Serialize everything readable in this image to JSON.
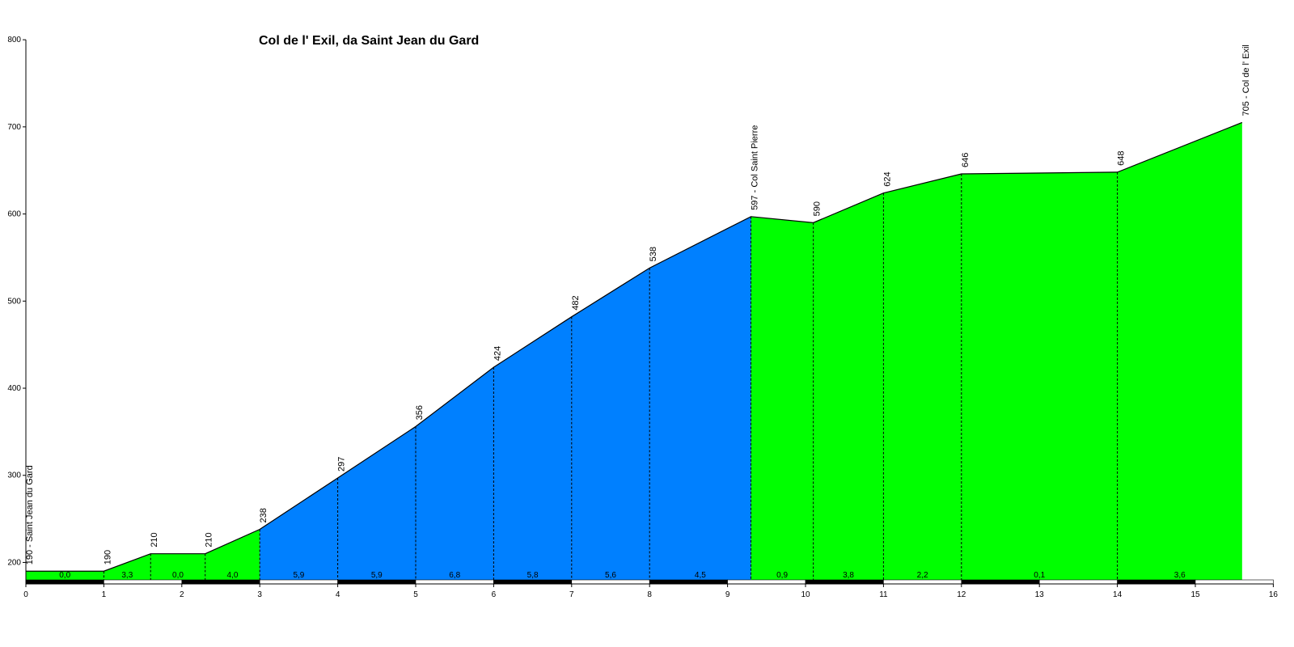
{
  "chart_data": {
    "type": "area",
    "title": "Col de l' Exil, da Saint Jean du Gard",
    "xlabel": "",
    "ylabel": "",
    "xlim": [
      0,
      16
    ],
    "ylim": [
      180,
      800
    ],
    "x_ticks": [
      0,
      1,
      2,
      3,
      4,
      5,
      6,
      7,
      8,
      9,
      10,
      11,
      12,
      13,
      14,
      15,
      16
    ],
    "y_ticks": [
      200,
      300,
      400,
      500,
      600,
      700,
      800
    ],
    "grid": false,
    "colors": {
      "climb": "#00ff00",
      "steep": "#0080ff",
      "outline": "#000000"
    },
    "segments": [
      {
        "x0": 0.0,
        "x1": 1.0,
        "y0": 190,
        "y1": 190,
        "color": "green"
      },
      {
        "x0": 1.0,
        "x1": 1.6,
        "y0": 190,
        "y1": 210,
        "color": "green"
      },
      {
        "x0": 1.6,
        "x1": 2.3,
        "y0": 210,
        "y1": 210,
        "color": "green"
      },
      {
        "x0": 2.3,
        "x1": 3.0,
        "y0": 210,
        "y1": 238,
        "color": "green"
      },
      {
        "x0": 3.0,
        "x1": 4.0,
        "y0": 238,
        "y1": 297,
        "color": "blue"
      },
      {
        "x0": 4.0,
        "x1": 5.0,
        "y0": 297,
        "y1": 356,
        "color": "blue"
      },
      {
        "x0": 5.0,
        "x1": 6.0,
        "y0": 356,
        "y1": 424,
        "color": "blue"
      },
      {
        "x0": 6.0,
        "x1": 7.0,
        "y0": 424,
        "y1": 482,
        "color": "blue"
      },
      {
        "x0": 7.0,
        "x1": 8.0,
        "y0": 482,
        "y1": 538,
        "color": "blue"
      },
      {
        "x0": 8.0,
        "x1": 9.3,
        "y0": 538,
        "y1": 597,
        "color": "blue"
      },
      {
        "x0": 9.3,
        "x1": 10.1,
        "y0": 597,
        "y1": 590,
        "color": "green"
      },
      {
        "x0": 10.1,
        "x1": 11.0,
        "y0": 590,
        "y1": 624,
        "color": "green"
      },
      {
        "x0": 11.0,
        "x1": 12.0,
        "y0": 624,
        "y1": 646,
        "color": "green"
      },
      {
        "x0": 12.0,
        "x1": 14.0,
        "y0": 646,
        "y1": 648,
        "color": "green"
      },
      {
        "x0": 14.0,
        "x1": 15.6,
        "y0": 648,
        "y1": 705,
        "color": "green"
      }
    ],
    "grade_labels": [
      "0,0",
      "3,3",
      "0,0",
      "4,0",
      "5,9",
      "5,9",
      "6,8",
      "5,8",
      "5,6",
      "4,5",
      "0,9",
      "3,8",
      "2,2",
      "0,1",
      "3,6"
    ],
    "point_labels": [
      {
        "x": 0.0,
        "y": 190,
        "text": "190 - Saint Jean du Gard"
      },
      {
        "x": 1.0,
        "y": 190,
        "text": "190"
      },
      {
        "x": 1.6,
        "y": 210,
        "text": "210"
      },
      {
        "x": 2.3,
        "y": 210,
        "text": "210"
      },
      {
        "x": 3.0,
        "y": 238,
        "text": "238"
      },
      {
        "x": 4.0,
        "y": 297,
        "text": "297"
      },
      {
        "x": 5.0,
        "y": 356,
        "text": "356"
      },
      {
        "x": 6.0,
        "y": 424,
        "text": "424"
      },
      {
        "x": 7.0,
        "y": 482,
        "text": "482"
      },
      {
        "x": 8.0,
        "y": 538,
        "text": "538"
      },
      {
        "x": 9.3,
        "y": 597,
        "text": "597 - Col Saint Pierre"
      },
      {
        "x": 10.1,
        "y": 590,
        "text": "590"
      },
      {
        "x": 11.0,
        "y": 624,
        "text": "624"
      },
      {
        "x": 12.0,
        "y": 646,
        "text": "646"
      },
      {
        "x": 14.0,
        "y": 648,
        "text": "648"
      },
      {
        "x": 15.6,
        "y": 705,
        "text": "705 - Col de l' Exil"
      }
    ]
  }
}
